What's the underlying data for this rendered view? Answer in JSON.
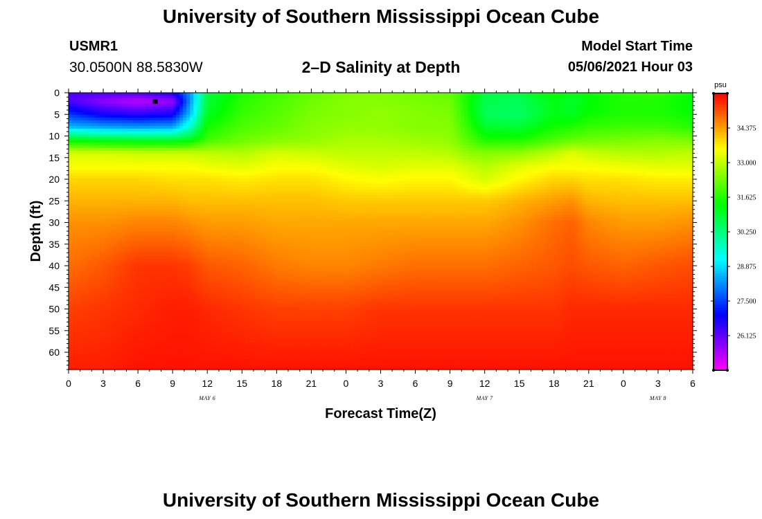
{
  "header": {
    "title": "University of Southern Mississippi Ocean Cube",
    "station_id": "USMR1",
    "coordinates": "30.0500N  88.5830W",
    "subtitle": "2–D Salinity at Depth",
    "model_start_label": "Model Start Time",
    "model_start_value": "05/06/2021 Hour 03"
  },
  "footer": {
    "title": "University of Southern Mississippi Ocean Cube"
  },
  "chart_data": {
    "type": "heatmap",
    "title": "2–D Salinity at Depth",
    "xlabel": "Forecast Time(Z)",
    "ylabel": "Depth (ft)",
    "x_range_hours": [
      0,
      54
    ],
    "x_tick_hours": [
      0,
      3,
      6,
      9,
      12,
      15,
      18,
      21,
      24,
      27,
      30,
      33,
      36,
      39,
      42,
      45,
      48,
      51,
      54
    ],
    "x_tick_labels": [
      "0",
      "3",
      "6",
      "9",
      "12",
      "15",
      "18",
      "21",
      "0",
      "3",
      "6",
      "9",
      "12",
      "15",
      "18",
      "21",
      "0",
      "3",
      "6"
    ],
    "date_labels": [
      {
        "hour": 12,
        "text": "MAY 6"
      },
      {
        "hour": 36,
        "text": "MAY 7"
      },
      {
        "hour": 51,
        "text": "MAY 8"
      }
    ],
    "y_range_ft": [
      0,
      64
    ],
    "y_ticks": [
      0,
      5,
      10,
      15,
      20,
      25,
      30,
      35,
      40,
      45,
      50,
      55,
      60
    ],
    "colorbar": {
      "unit": "psu",
      "min": 24.75,
      "max": 35.75,
      "tick_values": [
        26.125,
        27.5,
        28.875,
        30.25,
        31.625,
        33.0,
        34.375
      ],
      "tick_labels": [
        "26.125",
        "27.500",
        "28.875",
        "30.250",
        "31.625",
        "33.000",
        "34.375"
      ]
    },
    "marker": {
      "hour": 7.5,
      "depth_ft": 2
    },
    "depth_levels_ft": [
      0,
      2,
      5,
      8,
      11,
      14,
      17,
      20,
      25,
      30,
      40,
      50,
      64
    ],
    "time_levels_hours": [
      0,
      3,
      6,
      9,
      10.5,
      12,
      15,
      18,
      21,
      24,
      27,
      30,
      33,
      34.5,
      36,
      39,
      42,
      43.5,
      45,
      48,
      51,
      54
    ],
    "salinity_psu": [
      [
        26.3,
        26.3,
        26.3,
        26.8,
        28.2,
        30.8,
        31.6,
        31.9,
        32.2,
        32.4,
        32.4,
        32.3,
        32.2,
        31.6,
        30.8,
        30.8,
        31.5,
        31.2,
        31.4,
        31.7,
        31.8,
        31.4
      ],
      [
        26.3,
        25.7,
        25.3,
        25.6,
        28.2,
        30.9,
        31.7,
        32.0,
        32.3,
        32.5,
        32.5,
        32.4,
        32.3,
        31.5,
        30.7,
        30.6,
        31.2,
        31.0,
        31.3,
        31.6,
        31.6,
        31.3
      ],
      [
        27.4,
        26.8,
        26.6,
        26.8,
        28.6,
        31.1,
        31.8,
        32.1,
        32.4,
        32.5,
        32.6,
        32.5,
        32.4,
        31.6,
        30.6,
        30.5,
        31.2,
        31.1,
        31.4,
        31.6,
        31.6,
        31.4
      ],
      [
        28.6,
        28.4,
        28.3,
        28.4,
        29.6,
        31.5,
        32.0,
        32.2,
        32.5,
        32.6,
        32.6,
        32.5,
        32.5,
        31.8,
        31.0,
        30.9,
        31.5,
        31.6,
        31.8,
        31.9,
        31.9,
        31.7
      ],
      [
        31.3,
        31.1,
        31.0,
        31.0,
        31.2,
        31.9,
        32.3,
        32.5,
        32.6,
        32.8,
        32.8,
        32.7,
        32.6,
        32.1,
        31.6,
        31.6,
        32.0,
        32.2,
        32.3,
        32.4,
        32.5,
        32.4
      ],
      [
        33.2,
        33.2,
        33.1,
        33.1,
        33.1,
        33.0,
        32.9,
        33.2,
        33.1,
        33.0,
        33.0,
        33.0,
        32.9,
        32.6,
        32.5,
        32.6,
        33.0,
        33.3,
        33.1,
        32.9,
        32.9,
        33.0
      ],
      [
        33.5,
        33.5,
        33.5,
        33.5,
        33.5,
        33.4,
        33.3,
        33.5,
        33.5,
        33.3,
        33.2,
        33.3,
        33.3,
        33.1,
        32.9,
        33.3,
        33.5,
        33.5,
        33.5,
        33.4,
        33.3,
        33.3
      ],
      [
        33.9,
        33.9,
        33.9,
        33.8,
        33.8,
        33.8,
        33.7,
        33.8,
        33.8,
        33.6,
        33.5,
        33.6,
        33.6,
        33.4,
        33.2,
        33.6,
        33.9,
        33.9,
        33.8,
        33.8,
        33.7,
        33.7
      ],
      [
        34.2,
        34.2,
        34.2,
        34.2,
        34.1,
        34.1,
        34.1,
        34.1,
        34.1,
        34.0,
        34.0,
        34.0,
        34.0,
        34.0,
        34.0,
        34.2,
        34.4,
        34.5,
        34.2,
        34.1,
        34.1,
        34.1
      ],
      [
        34.5,
        34.5,
        34.6,
        34.6,
        34.5,
        34.4,
        34.4,
        34.3,
        34.3,
        34.3,
        34.3,
        34.3,
        34.3,
        34.3,
        34.3,
        34.5,
        34.8,
        34.9,
        34.6,
        34.4,
        34.4,
        34.5
      ],
      [
        34.8,
        35.0,
        35.3,
        35.3,
        35.2,
        35.0,
        34.9,
        34.7,
        34.6,
        34.6,
        34.7,
        34.8,
        34.8,
        34.8,
        34.8,
        34.9,
        35.0,
        35.1,
        35.0,
        34.9,
        35.0,
        35.1
      ],
      [
        35.2,
        35.3,
        35.4,
        35.5,
        35.5,
        35.4,
        35.3,
        35.2,
        35.2,
        35.2,
        35.3,
        35.3,
        35.3,
        35.3,
        35.3,
        35.3,
        35.3,
        35.4,
        35.4,
        35.4,
        35.4,
        35.4
      ],
      [
        35.5,
        35.5,
        35.6,
        35.6,
        35.6,
        35.6,
        35.6,
        35.6,
        35.6,
        35.6,
        35.6,
        35.6,
        35.6,
        35.6,
        35.6,
        35.6,
        35.6,
        35.6,
        35.6,
        35.6,
        35.6,
        35.6
      ]
    ]
  }
}
